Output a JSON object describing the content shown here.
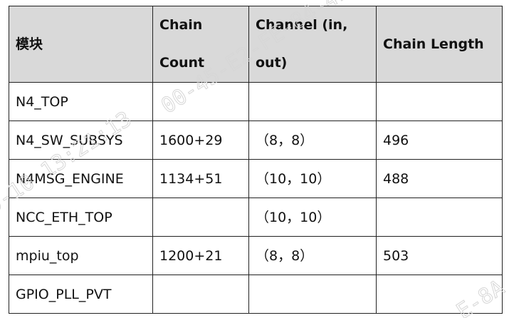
{
  "table": {
    "headers": {
      "module": "模块",
      "chain_count": "Chain Count",
      "channel": "Channel (in, out)",
      "chain_length": "Chain Length"
    },
    "rows": [
      {
        "module": "N4_TOP",
        "chain_count": "",
        "channel": "",
        "chain_length": ""
      },
      {
        "module": "N4_SW_SUBSYS",
        "chain_count": "1600+29",
        "channel": "（8，8）",
        "chain_length": "496"
      },
      {
        "module": "N4MSG_ENGINE",
        "chain_count": "1134+51",
        "channel": "（10，10）",
        "chain_length": "488"
      },
      {
        "module": "NCC_ETH_TOP",
        "chain_count": "",
        "channel": "（10，10）",
        "chain_length": ""
      },
      {
        "module": "mpiu_top",
        "chain_count": "1200+21",
        "channel": "（8，8）",
        "chain_length": "503"
      },
      {
        "module": "GPIO_PLL_PVT",
        "chain_count": "",
        "channel": "",
        "chain_length": ""
      }
    ]
  },
  "watermark": {
    "line1": "0-10 13:21:13",
    "line2": "00-45-E2-FE-84-4E",
    "line3": "E-8A"
  },
  "colors": {
    "header_background": "#d9d9d9",
    "border": "#222222",
    "watermark": "#d6d6d6"
  }
}
